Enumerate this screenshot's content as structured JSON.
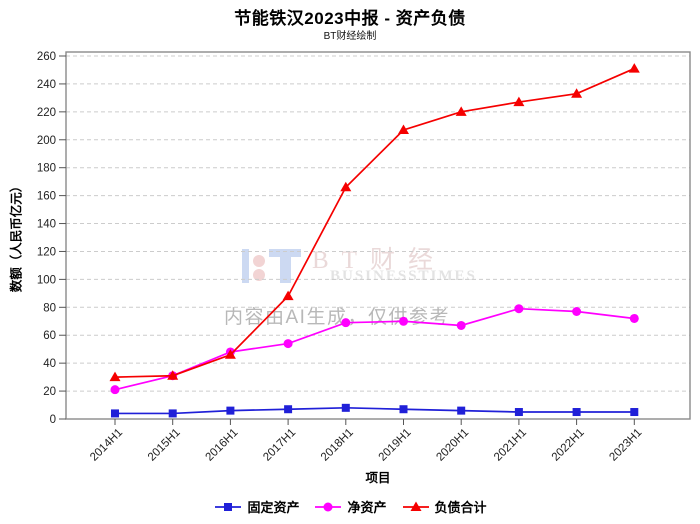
{
  "watermarks": {
    "brand_cn": "BT财经",
    "brand_en": "BUSINESSTIMES",
    "ai_notice": "内容由AI生成，仅供参考"
  },
  "chart_data": {
    "type": "line",
    "title": "节能铁汉2023中报 - 资产负债",
    "subtitle": "BT财经绘制",
    "xlabel": "项目",
    "ylabel": "数额（人民币亿元）",
    "categories": [
      "2014H1",
      "2015H1",
      "2016H1",
      "2017H1",
      "2018H1",
      "2019H1",
      "2020H1",
      "2021H1",
      "2022H1",
      "2023H1"
    ],
    "series": [
      {
        "name": "固定资产",
        "key": "fixed-assets",
        "marker": "square",
        "color": "#2020d8",
        "values": [
          4,
          4,
          6,
          7,
          8,
          7,
          6,
          5,
          5,
          5
        ]
      },
      {
        "name": "净资产",
        "key": "net-assets",
        "marker": "circle",
        "color": "#ff00ff",
        "values": [
          21,
          31,
          48,
          54,
          69,
          70,
          67,
          79,
          77,
          72
        ]
      },
      {
        "name": "负债合计",
        "key": "total-liabilities",
        "marker": "triangle",
        "color": "#f50000",
        "values": [
          30,
          31,
          46,
          88,
          166,
          207,
          220,
          227,
          233,
          251
        ]
      }
    ],
    "ylim": [
      0,
      262
    ],
    "ytick_max": 260,
    "ytick_step": 20,
    "grid": "horizontal-dashed",
    "legend_position": "bottom"
  }
}
